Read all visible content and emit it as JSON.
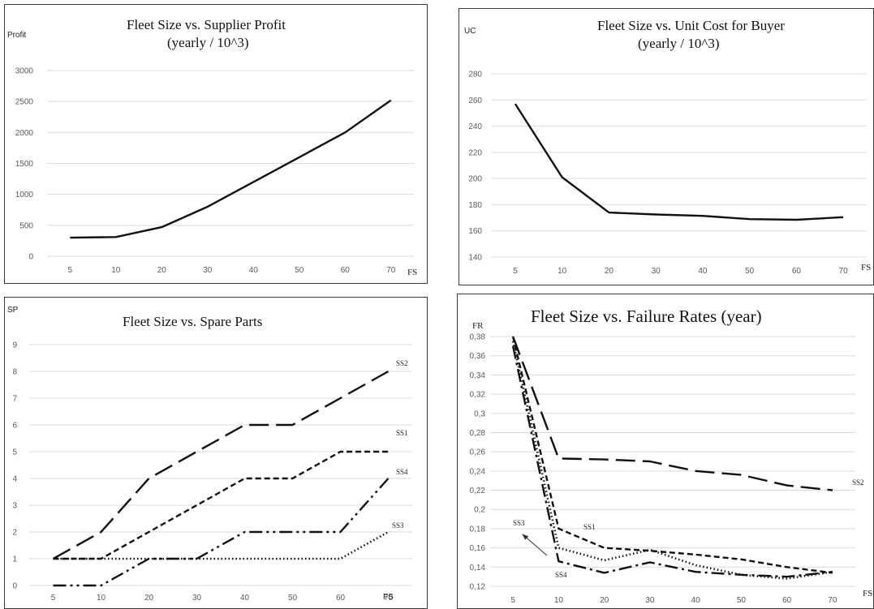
{
  "chart_data": [
    {
      "type": "line",
      "title": "Fleet Size vs. Supplier Profit",
      "subtitle": "(yearly / 10^3)",
      "xlabel": "FS",
      "ylabel": "Profit",
      "categories": [
        "5",
        "10",
        "20",
        "30",
        "40",
        "50",
        "60",
        "70"
      ],
      "ylim": [
        0,
        3000
      ],
      "yticks": [
        "0",
        "500",
        "1000",
        "1500",
        "2000",
        "2500",
        "3000"
      ],
      "grid": true,
      "series": [
        {
          "values": [
            300,
            310,
            470,
            800,
            1200,
            1600,
            2000,
            2520
          ],
          "style": "solid"
        }
      ]
    },
    {
      "type": "line",
      "title": "Fleet Size vs. Unit Cost for Buyer",
      "subtitle": "(yearly / 10^3)",
      "xlabel": "FS",
      "ylabel": "UC",
      "categories": [
        "5",
        "10",
        "20",
        "30",
        "40",
        "50",
        "60",
        "70"
      ],
      "ylim": [
        140,
        280
      ],
      "yticks": [
        "140",
        "160",
        "180",
        "200",
        "220",
        "240",
        "260",
        "280"
      ],
      "grid": true,
      "series": [
        {
          "values": [
            257,
            201,
            174,
            172.5,
            171.5,
            169,
            168.5,
            170.5
          ],
          "style": "solid"
        }
      ]
    },
    {
      "type": "line",
      "title": "Fleet Size vs. Spare Parts",
      "xlabel": "FS",
      "ylabel": "SP",
      "categories": [
        "5",
        "10",
        "20",
        "30",
        "40",
        "50",
        "60",
        "70"
      ],
      "ylim": [
        0,
        9
      ],
      "yticks": [
        "0",
        "1",
        "2",
        "3",
        "4",
        "5",
        "6",
        "7",
        "8",
        "9"
      ],
      "grid": true,
      "series": [
        {
          "name": "SS2",
          "values": [
            1,
            2,
            4,
            5,
            6,
            6,
            7,
            8
          ],
          "style": "longdash"
        },
        {
          "name": "SS1",
          "values": [
            1,
            1,
            2,
            3,
            4,
            4,
            5,
            5
          ],
          "style": "dash"
        },
        {
          "name": "SS4",
          "values": [
            0,
            0,
            1,
            1,
            2,
            2,
            2,
            4
          ],
          "style": "dashdotdot"
        },
        {
          "name": "SS3",
          "values": [
            1,
            1,
            1,
            1,
            1,
            1,
            1,
            2
          ],
          "style": "dot"
        }
      ]
    },
    {
      "type": "line",
      "title": "Fleet Size vs. Failure Rates (year)",
      "xlabel": "FS",
      "ylabel": "FR",
      "categories": [
        "5",
        "10",
        "20",
        "30",
        "40",
        "50",
        "60",
        "70"
      ],
      "ylim": [
        0.12,
        0.38
      ],
      "yticks": [
        "0,12",
        "0,14",
        "0,16",
        "0,18",
        "0,2",
        "0,22",
        "0,24",
        "0,26",
        "0,28",
        "0,3",
        "0,32",
        "0,34",
        "0,36",
        "0,38"
      ],
      "grid": true,
      "series": [
        {
          "name": "SS2",
          "values": [
            0.38,
            0.253,
            0.252,
            0.25,
            0.24,
            0.236,
            0.225,
            0.22
          ],
          "style": "longdash"
        },
        {
          "name": "SS1",
          "values": [
            0.38,
            0.18,
            0.16,
            0.157,
            0.153,
            0.148,
            0.14,
            0.134
          ],
          "style": "dash"
        },
        {
          "name": "SS3",
          "values": [
            0.375,
            0.16,
            0.147,
            0.158,
            0.142,
            0.132,
            0.128,
            0.135
          ],
          "style": "dot"
        },
        {
          "name": "SS4",
          "values": [
            0.37,
            0.146,
            0.134,
            0.145,
            0.135,
            0.132,
            0.13,
            0.135
          ],
          "style": "dashdot"
        }
      ]
    }
  ]
}
